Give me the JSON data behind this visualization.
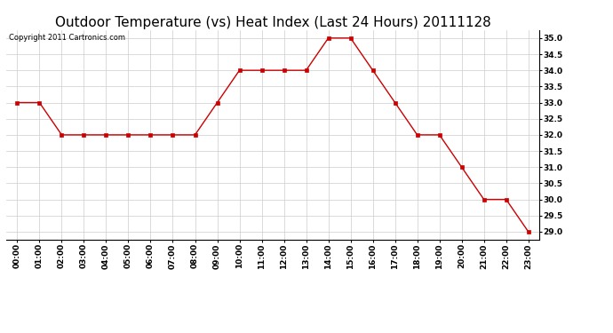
{
  "title": "Outdoor Temperature (vs) Heat Index (Last 24 Hours) 20111128",
  "copyright": "Copyright 2011 Cartronics.com",
  "x_labels": [
    "00:00",
    "01:00",
    "02:00",
    "03:00",
    "04:00",
    "05:00",
    "06:00",
    "07:00",
    "08:00",
    "09:00",
    "10:00",
    "11:00",
    "12:00",
    "13:00",
    "14:00",
    "15:00",
    "16:00",
    "17:00",
    "18:00",
    "19:00",
    "20:00",
    "21:00",
    "22:00",
    "23:00"
  ],
  "y_values": [
    33.0,
    33.0,
    32.0,
    32.0,
    32.0,
    32.0,
    32.0,
    32.0,
    32.0,
    33.0,
    34.0,
    34.0,
    34.0,
    34.0,
    35.0,
    35.0,
    34.0,
    33.0,
    32.0,
    32.0,
    31.0,
    30.0,
    30.0,
    29.0
  ],
  "line_color": "#cc0000",
  "marker": "s",
  "marker_size": 2.5,
  "ylim_min": 28.75,
  "ylim_max": 35.25,
  "ytick_min": 29.0,
  "ytick_max": 35.0,
  "ytick_step": 0.5,
  "background_color": "#ffffff",
  "grid_color": "#cccccc",
  "title_fontsize": 11,
  "copyright_fontsize": 6,
  "tick_fontsize": 6.5
}
